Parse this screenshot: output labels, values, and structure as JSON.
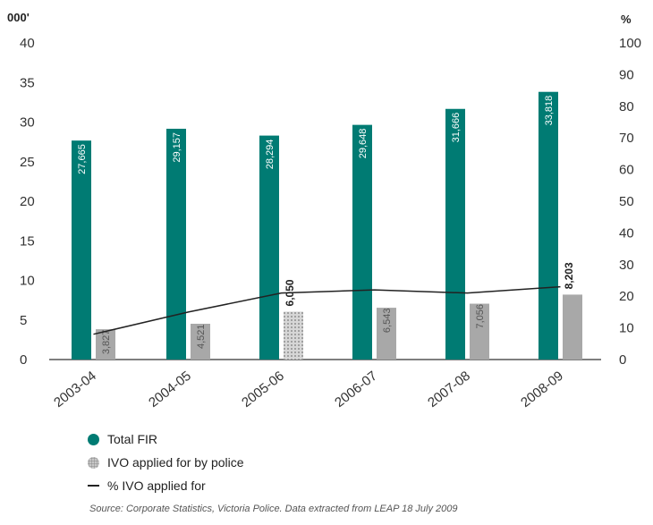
{
  "chart_data": {
    "type": "bar",
    "left_unit_label": "000'",
    "right_unit_label": "%",
    "categories": [
      "2003-04",
      "2004-05",
      "2005-06",
      "2006-07",
      "2007-08",
      "2008-09"
    ],
    "ylim_left": [
      0,
      40
    ],
    "ylim_right": [
      0,
      100
    ],
    "left_ticks": [
      0,
      5,
      10,
      15,
      20,
      25,
      30,
      35,
      40
    ],
    "right_ticks": [
      0,
      10,
      20,
      30,
      40,
      50,
      60,
      70,
      80,
      90,
      100
    ],
    "series": [
      {
        "name": "Total FIR",
        "type": "bar",
        "axis": "left",
        "color": "#007b73",
        "values": [
          27.665,
          29.157,
          28.294,
          29.648,
          31.666,
          33.818
        ],
        "labels": [
          "27,665",
          "29,157",
          "28,294",
          "29,648",
          "31,666",
          "33,818"
        ]
      },
      {
        "name": "IVO applied for by police",
        "type": "bar",
        "axis": "left",
        "color": "#a8a8a8",
        "values": [
          3.827,
          4.521,
          6.05,
          6.543,
          7.056,
          8.203
        ],
        "labels": [
          "3,827",
          "4,521",
          "6,050",
          "6,543",
          "7,056",
          "8,203"
        ]
      },
      {
        "name": "% IVO applied for",
        "type": "line",
        "axis": "right",
        "color": "#222222",
        "values": [
          8,
          15,
          21,
          22,
          21,
          23
        ]
      }
    ],
    "grid": false,
    "legend_position": "bottom-left",
    "source": "Source: Corporate Statistics, Victoria Police. Data extracted from LEAP 18 July 2009"
  }
}
